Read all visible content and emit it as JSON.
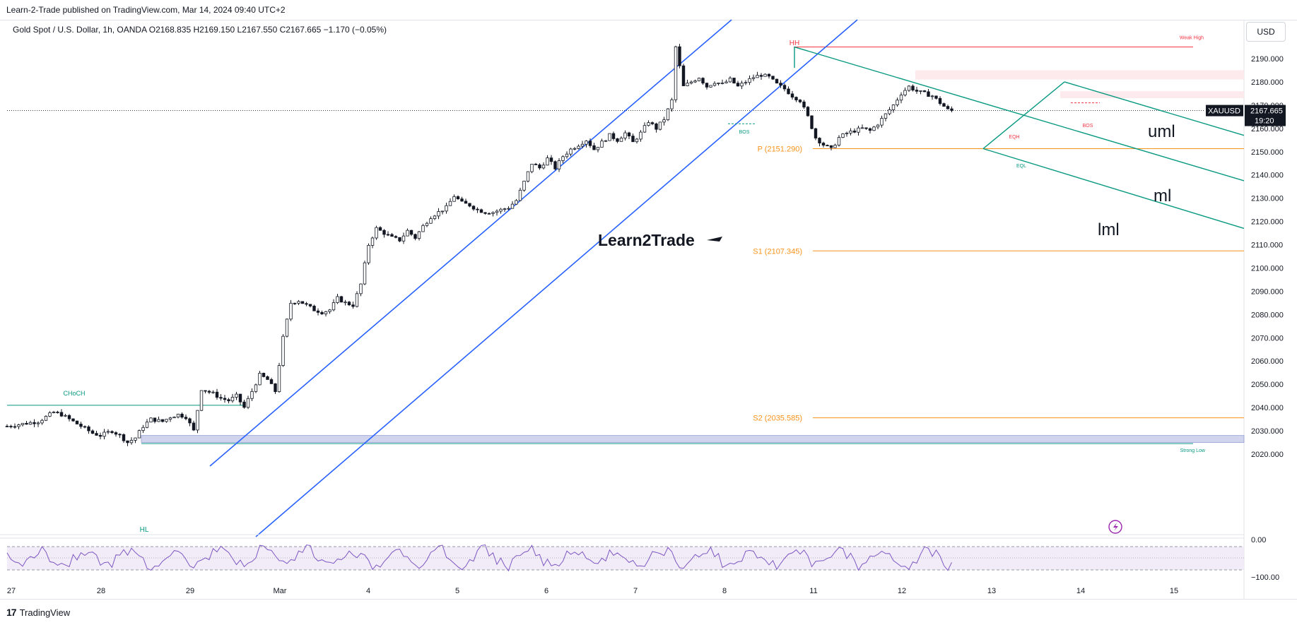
{
  "header": {
    "publisher": "Learn-2-Trade published on TradingView.com, Mar 14, 2024 09:40 UTC+2",
    "symbol_info": "Gold Spot / U.S. Dollar, 1h, OANDA  O2168.835  H2169.150  L2167.550  C2167.665  −1.170 (−0.05%)",
    "currency_button": "USD"
  },
  "branding": {
    "footer_logo": "17",
    "footer_label": "TradingView",
    "watermark": "Learn2Trade"
  },
  "price_badge": {
    "ticker": "XAUUSD",
    "price": "2167.665",
    "countdown": "19:20"
  },
  "indicator_badge_icon": "lightning-icon",
  "chart_data": {
    "type": "candlestick",
    "ylim": [
      2018,
      2205
    ],
    "y_ticks": [
      "2190.000",
      "2180.000",
      "2170.000",
      "2160.000",
      "2150.000",
      "2140.000",
      "2130.000",
      "2120.000",
      "2110.000",
      "2100.000",
      "2090.000",
      "2080.000",
      "2070.000",
      "2060.000",
      "2050.000",
      "2040.000",
      "2030.000",
      "2020.000"
    ],
    "x_ticks": [
      "27",
      "28",
      "29",
      "Mar",
      "4",
      "5",
      "6",
      "7",
      "8",
      "11",
      "12",
      "13",
      "14",
      "15"
    ],
    "oscillator_ticks": [
      "0.00",
      "−100.00"
    ],
    "close_path": [
      [
        0,
        2032
      ],
      [
        4,
        2033
      ],
      [
        8,
        2034
      ],
      [
        10,
        2036
      ],
      [
        12,
        2038
      ],
      [
        14,
        2037
      ],
      [
        17,
        2034
      ],
      [
        20,
        2031
      ],
      [
        22,
        2029
      ],
      [
        24,
        2028
      ],
      [
        27,
        2030
      ],
      [
        29,
        2028
      ],
      [
        31,
        2025
      ],
      [
        33,
        2027
      ],
      [
        35,
        2032
      ],
      [
        37,
        2035
      ],
      [
        40,
        2034
      ],
      [
        42,
        2036
      ],
      [
        44,
        2037
      ],
      [
        46,
        2036
      ],
      [
        48,
        2030
      ],
      [
        50,
        2048
      ],
      [
        53,
        2046
      ],
      [
        55,
        2044
      ],
      [
        57,
        2043
      ],
      [
        59,
        2045
      ],
      [
        61,
        2040
      ],
      [
        63,
        2047
      ],
      [
        65,
        2054
      ],
      [
        67,
        2052
      ],
      [
        69,
        2047
      ],
      [
        71,
        2070
      ],
      [
        73,
        2085
      ],
      [
        75,
        2086
      ],
      [
        77,
        2084
      ],
      [
        79,
        2082
      ],
      [
        81,
        2081
      ],
      [
        83,
        2082
      ],
      [
        85,
        2087
      ],
      [
        87,
        2085
      ],
      [
        89,
        2084
      ],
      [
        91,
        2093
      ],
      [
        93,
        2110
      ],
      [
        95,
        2117
      ],
      [
        97,
        2115
      ],
      [
        99,
        2113
      ],
      [
        101,
        2112
      ],
      [
        103,
        2116
      ],
      [
        105,
        2113
      ],
      [
        107,
        2118
      ],
      [
        109,
        2122
      ],
      [
        111,
        2124
      ],
      [
        113,
        2126
      ],
      [
        115,
        2131
      ],
      [
        117,
        2128
      ],
      [
        119,
        2127
      ],
      [
        121,
        2125
      ],
      [
        123,
        2124
      ],
      [
        125,
        2124
      ],
      [
        127,
        2125
      ],
      [
        129,
        2126
      ],
      [
        131,
        2129
      ],
      [
        133,
        2137
      ],
      [
        135,
        2145
      ],
      [
        137,
        2143
      ],
      [
        139,
        2147
      ],
      [
        141,
        2143
      ],
      [
        143,
        2148
      ],
      [
        145,
        2151
      ],
      [
        147,
        2153
      ],
      [
        149,
        2155
      ],
      [
        151,
        2151
      ],
      [
        153,
        2154
      ],
      [
        155,
        2157
      ],
      [
        157,
        2155
      ],
      [
        159,
        2158
      ],
      [
        161,
        2154
      ],
      [
        163,
        2158
      ],
      [
        165,
        2163
      ],
      [
        167,
        2160
      ],
      [
        169,
        2164
      ],
      [
        171,
        2172
      ],
      [
        172,
        2195
      ],
      [
        174,
        2178
      ],
      [
        176,
        2180
      ],
      [
        178,
        2182
      ],
      [
        180,
        2178
      ],
      [
        182,
        2180
      ],
      [
        184,
        2179
      ],
      [
        186,
        2181
      ],
      [
        188,
        2178
      ],
      [
        190,
        2180
      ],
      [
        192,
        2182
      ],
      [
        194,
        2183
      ],
      [
        196,
        2182
      ],
      [
        198,
        2179
      ],
      [
        200,
        2177
      ],
      [
        202,
        2174
      ],
      [
        204,
        2172
      ],
      [
        206,
        2165
      ],
      [
        208,
        2156
      ],
      [
        210,
        2153
      ],
      [
        212,
        2151
      ],
      [
        214,
        2156
      ],
      [
        216,
        2158
      ],
      [
        218,
        2159
      ],
      [
        220,
        2160
      ],
      [
        222,
        2159
      ],
      [
        224,
        2162
      ],
      [
        226,
        2166
      ],
      [
        228,
        2170
      ],
      [
        230,
        2175
      ],
      [
        232,
        2178
      ],
      [
        234,
        2176
      ],
      [
        236,
        2175
      ],
      [
        238,
        2174
      ],
      [
        240,
        2171
      ],
      [
        242,
        2168
      ],
      [
        243,
        2167.665
      ]
    ],
    "levels": [
      {
        "name": "P",
        "label": "P (2151.290)",
        "value": 2151.29,
        "color": "#f7931a"
      },
      {
        "name": "S1",
        "label": "S1 (2107.345)",
        "value": 2107.345,
        "color": "#f7931a"
      },
      {
        "name": "S2",
        "label": "S2 (2035.585)",
        "value": 2035.585,
        "color": "#f7931a"
      },
      {
        "name": "Weak High",
        "label": "Weak High",
        "value": 2195,
        "color": "#f23645"
      },
      {
        "name": "Strong Low",
        "label": "Strong Low",
        "value": 2024.5,
        "color": "#089981"
      },
      {
        "name": "CHoCH",
        "label": "CHoCH",
        "value": 2041,
        "color": "#089981"
      }
    ],
    "annotations": [
      {
        "text": "HH",
        "color": "#f23645"
      },
      {
        "text": "HL",
        "color": "#089981"
      },
      {
        "text": "BOS",
        "color": "#089981"
      },
      {
        "text": "EQH",
        "color": "#f23645"
      },
      {
        "text": "EQL",
        "color": "#089981"
      },
      {
        "text": "BOS",
        "color": "#f23645"
      }
    ],
    "pitchfork_labels": [
      "uml",
      "ml",
      "lml"
    ],
    "colors": {
      "channel": "#2962ff",
      "pitchfork": "#089981",
      "pivot": "#f7931a",
      "up_candle": "#ffffff",
      "down_candle": "#131722",
      "oscillator": "#7e57c2"
    },
    "grid": false
  }
}
